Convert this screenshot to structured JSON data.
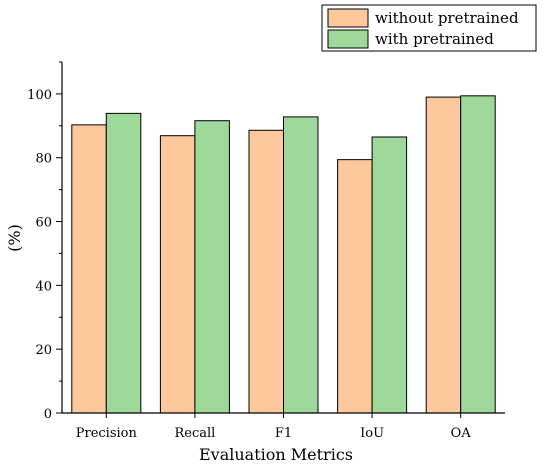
{
  "chart_data": {
    "type": "bar",
    "title": "",
    "xlabel": "Evaluation Metrics",
    "ylabel": "(%)",
    "categories": [
      "Precision",
      "Recall",
      "F1",
      "IoU",
      "OA"
    ],
    "series": [
      {
        "name": "without pretrained",
        "values": [
          90.3,
          86.9,
          88.6,
          79.4,
          99.0
        ],
        "color": "#FCC89C"
      },
      {
        "name": "with pretrained",
        "values": [
          93.9,
          91.6,
          92.8,
          86.5,
          99.4
        ],
        "color": "#9ED89A"
      }
    ],
    "ylim": [
      0,
      110
    ],
    "yticks": [
      0,
      20,
      40,
      60,
      80,
      100
    ],
    "grid": false,
    "legend_position": "top-right"
  }
}
